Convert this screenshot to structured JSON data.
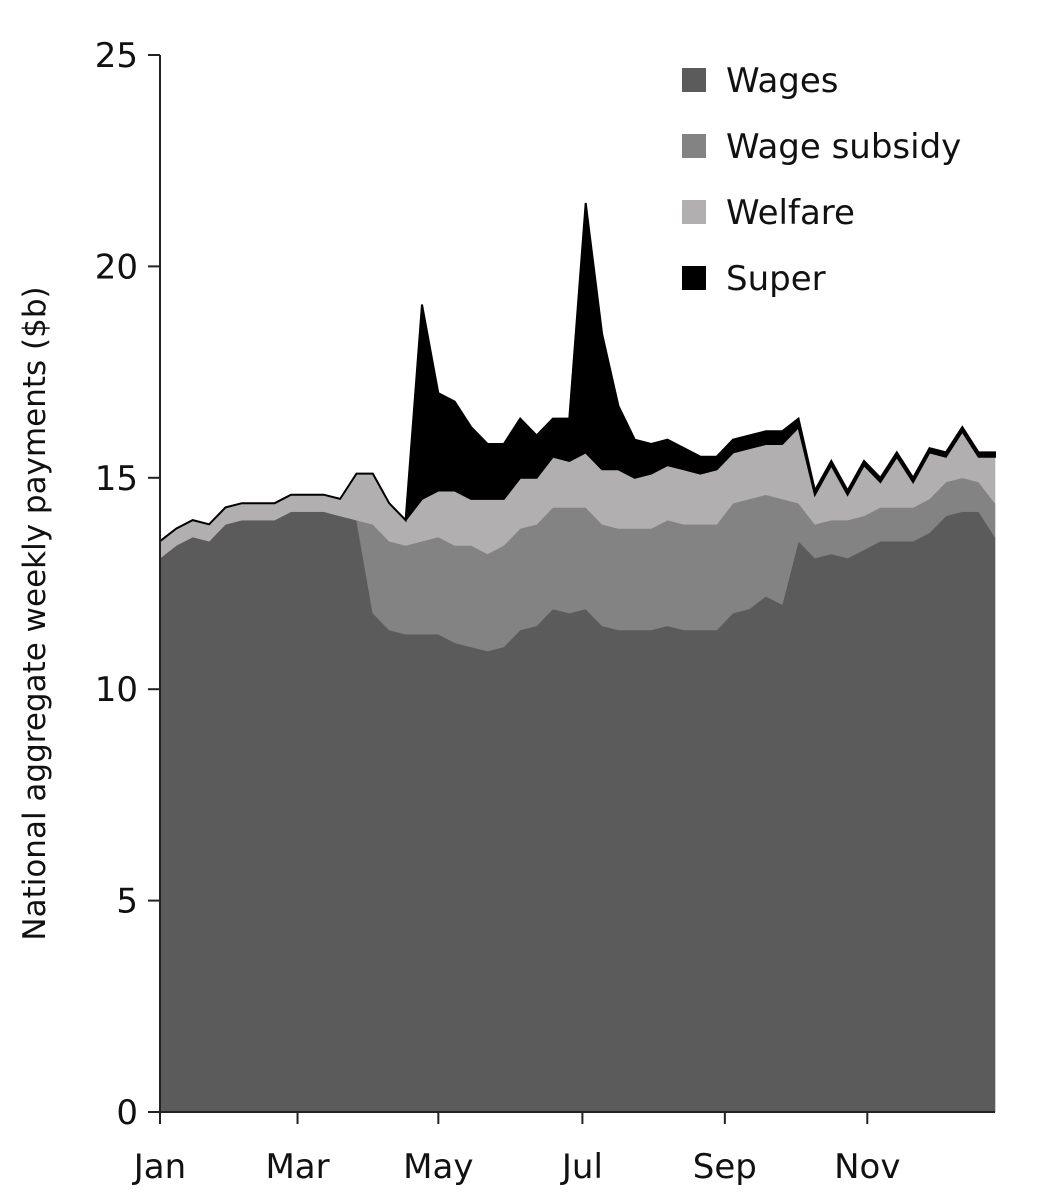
{
  "chart_data": {
    "type": "area",
    "stacked": true,
    "title": "",
    "xlabel": "",
    "ylabel": "National aggregate weekly payments ($b)",
    "ylim": [
      0,
      25
    ],
    "yticks": [
      0,
      5,
      10,
      15,
      20,
      25
    ],
    "xlim": [
      0,
      51
    ],
    "xticks": [
      {
        "label": "Jan",
        "x": 0
      },
      {
        "label": "Mar",
        "x": 8.4
      },
      {
        "label": "May",
        "x": 17
      },
      {
        "label": "Jul",
        "x": 25.8
      },
      {
        "label": "Sep",
        "x": 34.5
      },
      {
        "label": "Nov",
        "x": 43.2
      }
    ],
    "legend_position": "top-right",
    "grid": false,
    "x": [
      0,
      1,
      2,
      3,
      4,
      5,
      6,
      7,
      8,
      9,
      10,
      11,
      12,
      13,
      14,
      15,
      16,
      17,
      18,
      19,
      20,
      21,
      22,
      23,
      24,
      25,
      26,
      27,
      28,
      29,
      30,
      31,
      32,
      33,
      34,
      35,
      36,
      37,
      38,
      39,
      40,
      41,
      42,
      43,
      44,
      45,
      46,
      47,
      48,
      49,
      50,
      51
    ],
    "series": [
      {
        "name": "Wages",
        "color": "#5b5b5b",
        "values": [
          13.1,
          13.4,
          13.6,
          13.5,
          13.9,
          14.0,
          14.0,
          14.0,
          14.2,
          14.2,
          14.2,
          14.1,
          14.0,
          11.8,
          11.4,
          11.3,
          11.3,
          11.3,
          11.1,
          11.0,
          10.9,
          11.0,
          11.4,
          11.5,
          11.9,
          11.8,
          11.9,
          11.5,
          11.4,
          11.4,
          11.4,
          11.5,
          11.4,
          11.4,
          11.4,
          11.8,
          11.9,
          12.2,
          12.0,
          13.5,
          13.1,
          13.2,
          13.1,
          13.3,
          13.5,
          13.5,
          13.5,
          13.7,
          14.1,
          14.2,
          14.2,
          13.6
        ]
      },
      {
        "name": "Wage subsidy",
        "color": "#838383",
        "values": [
          0,
          0,
          0,
          0,
          0,
          0,
          0,
          0,
          0,
          0,
          0,
          0,
          0,
          2.1,
          2.1,
          2.1,
          2.2,
          2.3,
          2.3,
          2.4,
          2.3,
          2.4,
          2.4,
          2.4,
          2.4,
          2.5,
          2.4,
          2.4,
          2.4,
          2.4,
          2.4,
          2.5,
          2.5,
          2.5,
          2.5,
          2.6,
          2.6,
          2.4,
          2.5,
          0.9,
          0.8,
          0.8,
          0.9,
          0.8,
          0.8,
          0.8,
          0.8,
          0.8,
          0.8,
          0.8,
          0.7,
          0.8
        ]
      },
      {
        "name": "Welfare",
        "color": "#b1afaf",
        "values": [
          0.4,
          0.4,
          0.4,
          0.4,
          0.4,
          0.4,
          0.4,
          0.4,
          0.4,
          0.4,
          0.4,
          0.4,
          1.1,
          1.2,
          0.9,
          0.6,
          1.0,
          1.1,
          1.3,
          1.1,
          1.3,
          1.1,
          1.2,
          1.1,
          1.2,
          1.1,
          1.3,
          1.3,
          1.4,
          1.2,
          1.3,
          1.3,
          1.3,
          1.2,
          1.3,
          1.2,
          1.2,
          1.2,
          1.3,
          1.8,
          0.7,
          1.3,
          0.6,
          1.2,
          0.6,
          1.2,
          0.6,
          1.1,
          0.6,
          1.1,
          0.6,
          1.1
        ]
      },
      {
        "name": "Super",
        "color": "#000000",
        "values": [
          0,
          0,
          0,
          0,
          0,
          0,
          0,
          0,
          0,
          0,
          0,
          0,
          0,
          0,
          0,
          0,
          4.6,
          2.3,
          2.1,
          1.7,
          1.3,
          1.3,
          1.4,
          1.0,
          0.9,
          1.0,
          5.9,
          3.2,
          1.5,
          0.9,
          0.7,
          0.6,
          0.5,
          0.4,
          0.3,
          0.3,
          0.3,
          0.3,
          0.3,
          0.2,
          0.1,
          0.1,
          0.1,
          0.1,
          0.1,
          0.1,
          0.1,
          0.1,
          0.1,
          0.1,
          0.1,
          0.1
        ]
      }
    ]
  }
}
